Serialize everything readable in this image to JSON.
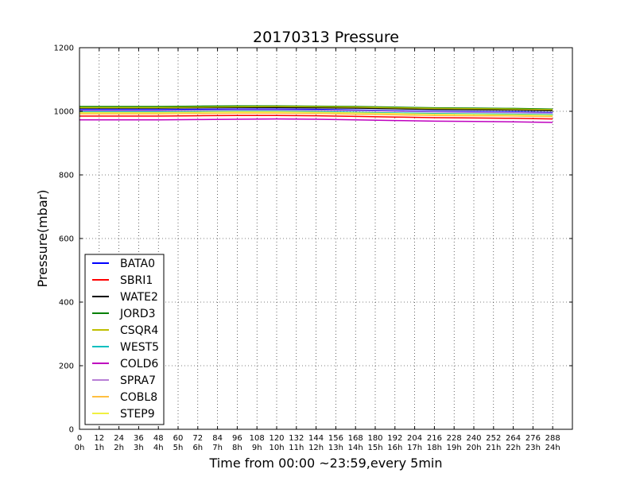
{
  "chart_data": {
    "type": "line",
    "title": "20170313 Pressure",
    "xlabel": "Time from 00:00 ~23:59,every 5min",
    "ylabel": "Pressure(mbar)",
    "xlim": [
      0,
      300
    ],
    "ylim": [
      0,
      1200
    ],
    "grid": true,
    "legend_position": "lower-left",
    "y_ticks": [
      {
        "value": 0,
        "label": "0"
      },
      {
        "value": 200,
        "label": "200"
      },
      {
        "value": 400,
        "label": "400"
      },
      {
        "value": 600,
        "label": "600"
      },
      {
        "value": 800,
        "label": "800"
      },
      {
        "value": 1000,
        "label": "1000"
      },
      {
        "value": 1200,
        "label": "1200"
      }
    ],
    "x_ticks": [
      {
        "value": 0,
        "label": "0",
        "sublabel": "0h"
      },
      {
        "value": 12,
        "label": "12",
        "sublabel": "1h"
      },
      {
        "value": 24,
        "label": "24",
        "sublabel": "2h"
      },
      {
        "value": 36,
        "label": "36",
        "sublabel": "3h"
      },
      {
        "value": 48,
        "label": "48",
        "sublabel": "4h"
      },
      {
        "value": 60,
        "label": "60",
        "sublabel": "5h"
      },
      {
        "value": 72,
        "label": "72",
        "sublabel": "6h"
      },
      {
        "value": 84,
        "label": "84",
        "sublabel": "7h"
      },
      {
        "value": 96,
        "label": "96",
        "sublabel": "8h"
      },
      {
        "value": 108,
        "label": "108",
        "sublabel": "9h"
      },
      {
        "value": 120,
        "label": "120",
        "sublabel": "10h"
      },
      {
        "value": 132,
        "label": "132",
        "sublabel": "11h"
      },
      {
        "value": 144,
        "label": "144",
        "sublabel": "12h"
      },
      {
        "value": 156,
        "label": "156",
        "sublabel": "13h"
      },
      {
        "value": 168,
        "label": "168",
        "sublabel": "14h"
      },
      {
        "value": 180,
        "label": "180",
        "sublabel": "15h"
      },
      {
        "value": 192,
        "label": "192",
        "sublabel": "16h"
      },
      {
        "value": 204,
        "label": "204",
        "sublabel": "17h"
      },
      {
        "value": 216,
        "label": "216",
        "sublabel": "18h"
      },
      {
        "value": 228,
        "label": "228",
        "sublabel": "19h"
      },
      {
        "value": 240,
        "label": "240",
        "sublabel": "20h"
      },
      {
        "value": 252,
        "label": "252",
        "sublabel": "21h"
      },
      {
        "value": 264,
        "label": "264",
        "sublabel": "22h"
      },
      {
        "value": 276,
        "label": "276",
        "sublabel": "23h"
      },
      {
        "value": 288,
        "label": "288",
        "sublabel": "24h"
      }
    ],
    "x": [
      0,
      24,
      48,
      72,
      96,
      120,
      144,
      168,
      192,
      216,
      240,
      264,
      288
    ],
    "series": [
      {
        "name": "BATA0",
        "color": "#0000ff",
        "values": [
          1005,
          1005,
          1005,
          1006,
          1007,
          1007,
          1006,
          1004,
          1002,
          1000,
          999,
          998,
          996
        ]
      },
      {
        "name": "SBRI1",
        "color": "#ff0000",
        "values": [
          985,
          985,
          985,
          986,
          987,
          987,
          986,
          984,
          982,
          980,
          979,
          978,
          976
        ]
      },
      {
        "name": "WATE2",
        "color": "#000000",
        "values": [
          1010,
          1010,
          1010,
          1011,
          1012,
          1012,
          1011,
          1010,
          1008,
          1006,
          1005,
          1004,
          1002
        ]
      },
      {
        "name": "JORD3",
        "color": "#008000",
        "values": [
          1015,
          1015,
          1015,
          1016,
          1017,
          1017,
          1016,
          1015,
          1013,
          1011,
          1010,
          1009,
          1007
        ]
      },
      {
        "name": "CSQR4",
        "color": "#bfbf00",
        "values": [
          1012,
          1012,
          1012,
          1013,
          1014,
          1015,
          1014,
          1013,
          1011,
          1009,
          1008,
          1007,
          1005
        ]
      },
      {
        "name": "WEST5",
        "color": "#00bfbf",
        "values": [
          998,
          998,
          998,
          999,
          1000,
          1000,
          999,
          997,
          995,
          993,
          992,
          991,
          989
        ]
      },
      {
        "name": "COLD6",
        "color": "#bf00bf",
        "values": [
          973,
          973,
          973,
          974,
          975,
          976,
          975,
          973,
          971,
          969,
          968,
          967,
          965
        ]
      },
      {
        "name": "SPRA7",
        "color": "#b87fd6",
        "values": [
          1002,
          1002,
          1002,
          1003,
          1004,
          1004,
          1003,
          1002,
          1000,
          998,
          997,
          996,
          994
        ]
      },
      {
        "name": "COBL8",
        "color": "#ffbf40",
        "values": [
          992,
          992,
          992,
          993,
          994,
          994,
          993,
          991,
          989,
          987,
          986,
          985,
          983
        ]
      },
      {
        "name": "STEP9",
        "color": "#f0f040",
        "values": [
          996,
          996,
          996,
          997,
          998,
          998,
          997,
          995,
          993,
          991,
          990,
          989,
          987
        ]
      }
    ]
  }
}
